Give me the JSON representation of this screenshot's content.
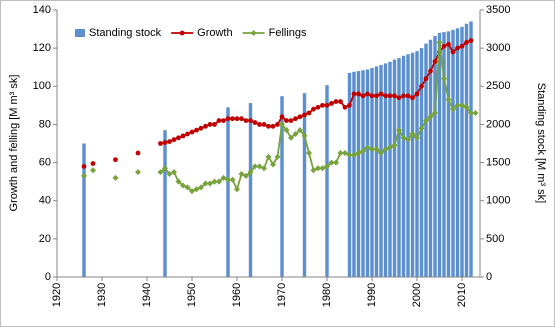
{
  "chart_data": {
    "type": "bar-line",
    "y_label": "Growth and felling [M m³ sk]",
    "y2_label": "Standing stock [M m³ sk]",
    "xlim": [
      1920,
      2014
    ],
    "xticks": [
      1920,
      1930,
      1940,
      1950,
      1960,
      1970,
      1980,
      1990,
      2000,
      2010
    ],
    "ylim": [
      0,
      140
    ],
    "yticks": [
      0,
      20,
      40,
      60,
      80,
      100,
      120,
      140
    ],
    "y2lim": [
      0,
      3500
    ],
    "y2ticks": [
      0,
      500,
      1000,
      1500,
      2000,
      2500,
      3000,
      3500
    ],
    "legend": "upper left",
    "series": [
      {
        "name": "Standing stock",
        "type": "bar",
        "axis": "y2",
        "color": "#5b8fd0",
        "x": [
          1926,
          1944,
          1958,
          1963,
          1970,
          1975,
          1980,
          1985,
          1986,
          1987,
          1988,
          1989,
          1990,
          1991,
          1992,
          1993,
          1994,
          1995,
          1996,
          1997,
          1998,
          1999,
          2000,
          2001,
          2002,
          2003,
          2004,
          2005,
          2006,
          2007,
          2008,
          2009,
          2010,
          2011,
          2012
        ],
        "values": [
          1750,
          1925,
          2225,
          2280,
          2370,
          2410,
          2515,
          2675,
          2690,
          2700,
          2710,
          2720,
          2740,
          2760,
          2780,
          2800,
          2820,
          2850,
          2870,
          2900,
          2920,
          2940,
          2960,
          3000,
          3060,
          3110,
          3160,
          3200,
          3210,
          3220,
          3240,
          3260,
          3280,
          3320,
          3350
        ]
      },
      {
        "name": "Growth",
        "type": "line",
        "color": "#c00000",
        "marker": "circle",
        "x": [
          1926,
          1928,
          1933,
          1938,
          1943,
          1944,
          1945,
          1946,
          1947,
          1948,
          1949,
          1950,
          1951,
          1952,
          1953,
          1954,
          1955,
          1956,
          1957,
          1958,
          1959,
          1960,
          1961,
          1962,
          1963,
          1964,
          1965,
          1966,
          1967,
          1968,
          1969,
          1970,
          1971,
          1972,
          1973,
          1974,
          1975,
          1976,
          1977,
          1978,
          1979,
          1980,
          1981,
          1982,
          1983,
          1984,
          1985,
          1986,
          1987,
          1988,
          1989,
          1990,
          1991,
          1992,
          1993,
          1994,
          1995,
          1996,
          1997,
          1998,
          1999,
          2000,
          2001,
          2002,
          2003,
          2004,
          2005,
          2006,
          2007,
          2008,
          2009,
          2010,
          2011,
          2012
        ],
        "values": [
          58,
          59.5,
          61.5,
          65,
          70,
          70.5,
          71,
          72,
          73,
          74,
          75,
          76,
          77,
          78,
          79,
          80,
          80,
          82,
          82,
          83,
          83,
          83,
          83,
          82,
          82,
          81,
          80,
          80,
          79,
          79,
          80,
          84,
          82,
          82,
          83,
          84,
          85,
          86,
          88,
          89,
          90,
          90,
          91,
          92,
          92,
          89,
          90,
          96,
          96,
          95,
          96,
          95,
          95,
          96,
          95,
          95,
          95,
          94,
          95,
          95,
          94,
          96,
          100,
          104,
          108,
          113,
          118,
          121,
          122,
          118,
          120,
          121,
          123,
          124
        ]
      },
      {
        "name": "Fellings",
        "type": "line",
        "color": "#77a33b",
        "marker": "diamond",
        "x": [
          1926,
          1928,
          1933,
          1938,
          1943,
          1944,
          1945,
          1946,
          1947,
          1948,
          1949,
          1950,
          1951,
          1952,
          1953,
          1954,
          1955,
          1956,
          1957,
          1958,
          1959,
          1960,
          1961,
          1962,
          1963,
          1964,
          1965,
          1966,
          1967,
          1968,
          1969,
          1970,
          1971,
          1972,
          1973,
          1974,
          1975,
          1976,
          1977,
          1978,
          1979,
          1980,
          1981,
          1982,
          1983,
          1984,
          1985,
          1986,
          1987,
          1988,
          1989,
          1990,
          1991,
          1992,
          1993,
          1994,
          1995,
          1996,
          1997,
          1998,
          1999,
          2000,
          2001,
          2002,
          2003,
          2004,
          2005,
          2006,
          2007,
          2008,
          2009,
          2010,
          2011,
          2012,
          2013
        ],
        "values": [
          53,
          56,
          52,
          55,
          55,
          57,
          54,
          55,
          50,
          48,
          47,
          45,
          46,
          47,
          49,
          49,
          50,
          50,
          52,
          51,
          51,
          46,
          54,
          53,
          55,
          58,
          58,
          57,
          63,
          59,
          63,
          80,
          77,
          73,
          75,
          77,
          74,
          65,
          56,
          57,
          57,
          58,
          60,
          60,
          65,
          65,
          64,
          64,
          65,
          66,
          68,
          67,
          67,
          65,
          67,
          68,
          69,
          77,
          73,
          72,
          75,
          73,
          78,
          82,
          84,
          86,
          123,
          104,
          93,
          88,
          90,
          90,
          89,
          86,
          86
        ]
      }
    ]
  }
}
